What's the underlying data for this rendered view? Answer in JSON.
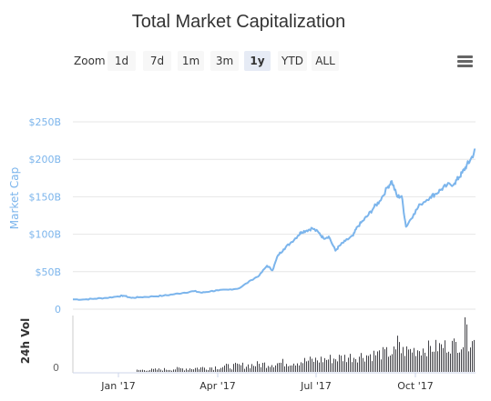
{
  "title": "Total Market Capitalization",
  "zoom": {
    "label": "Zoom",
    "buttons": [
      "1d",
      "7d",
      "1m",
      "3m",
      "1y",
      "YTD",
      "ALL"
    ],
    "selected": "1y"
  },
  "menu_icon": "hamburger-menu-icon",
  "colors": {
    "line": "#7cb5ec",
    "volume_bar": "#434348",
    "grid": "#e6e6e6",
    "selected_button": "#e6ebf5",
    "button": "#f7f7f7"
  },
  "chart_data": [
    {
      "type": "line",
      "ylabel": "Market Cap",
      "y_tick_labels": [
        "0",
        "$50B",
        "$100B",
        "$150B",
        "$200B",
        "$250B"
      ],
      "ylim": [
        0,
        250
      ],
      "y_unit": "billion USD",
      "xlim": [
        "2016-11-20",
        "2017-11-20"
      ],
      "grid": true,
      "series": [
        {
          "x": [
            "2016-11-20",
            "2016-12-01",
            "2016-12-10",
            "2016-12-20",
            "2016-12-31",
            "2017-01-05",
            "2017-01-12",
            "2017-01-20",
            "2017-02-01",
            "2017-02-10",
            "2017-02-20",
            "2017-03-01",
            "2017-03-10",
            "2017-03-17",
            "2017-03-25",
            "2017-04-01",
            "2017-04-10",
            "2017-04-20",
            "2017-05-01",
            "2017-05-08",
            "2017-05-15",
            "2017-05-20",
            "2017-05-25",
            "2017-05-30",
            "2017-06-05",
            "2017-06-12",
            "2017-06-15",
            "2017-06-20",
            "2017-06-25",
            "2017-07-01",
            "2017-07-05",
            "2017-07-10",
            "2017-07-16",
            "2017-07-20",
            "2017-07-25",
            "2017-08-01",
            "2017-08-05",
            "2017-08-10",
            "2017-08-15",
            "2017-08-20",
            "2017-08-25",
            "2017-09-01",
            "2017-09-05",
            "2017-09-10",
            "2017-09-14",
            "2017-09-18",
            "2017-09-25",
            "2017-10-01",
            "2017-10-10",
            "2017-10-15",
            "2017-10-20",
            "2017-10-25",
            "2017-11-01",
            "2017-11-05",
            "2017-11-08",
            "2017-11-12",
            "2017-11-15",
            "2017-11-20"
          ],
          "y": [
            13,
            13,
            14,
            15,
            17,
            18,
            15,
            16,
            17,
            18,
            20,
            22,
            24,
            22,
            24,
            25,
            26,
            28,
            39,
            45,
            58,
            52,
            72,
            80,
            88,
            98,
            103,
            105,
            108,
            102,
            95,
            97,
            78,
            85,
            91,
            98,
            110,
            118,
            126,
            136,
            144,
            162,
            171,
            150,
            151,
            110,
            127,
            140,
            150,
            154,
            160,
            165,
            168,
            176,
            182,
            192,
            198,
            213
          ]
        }
      ]
    },
    {
      "type": "bar",
      "ylabel": "24h Vol",
      "y_tick_labels": [
        "0"
      ],
      "x_tick_labels": [
        "Jan '17",
        "Apr '17",
        "Jul '17",
        "Oct '17"
      ]
    }
  ]
}
